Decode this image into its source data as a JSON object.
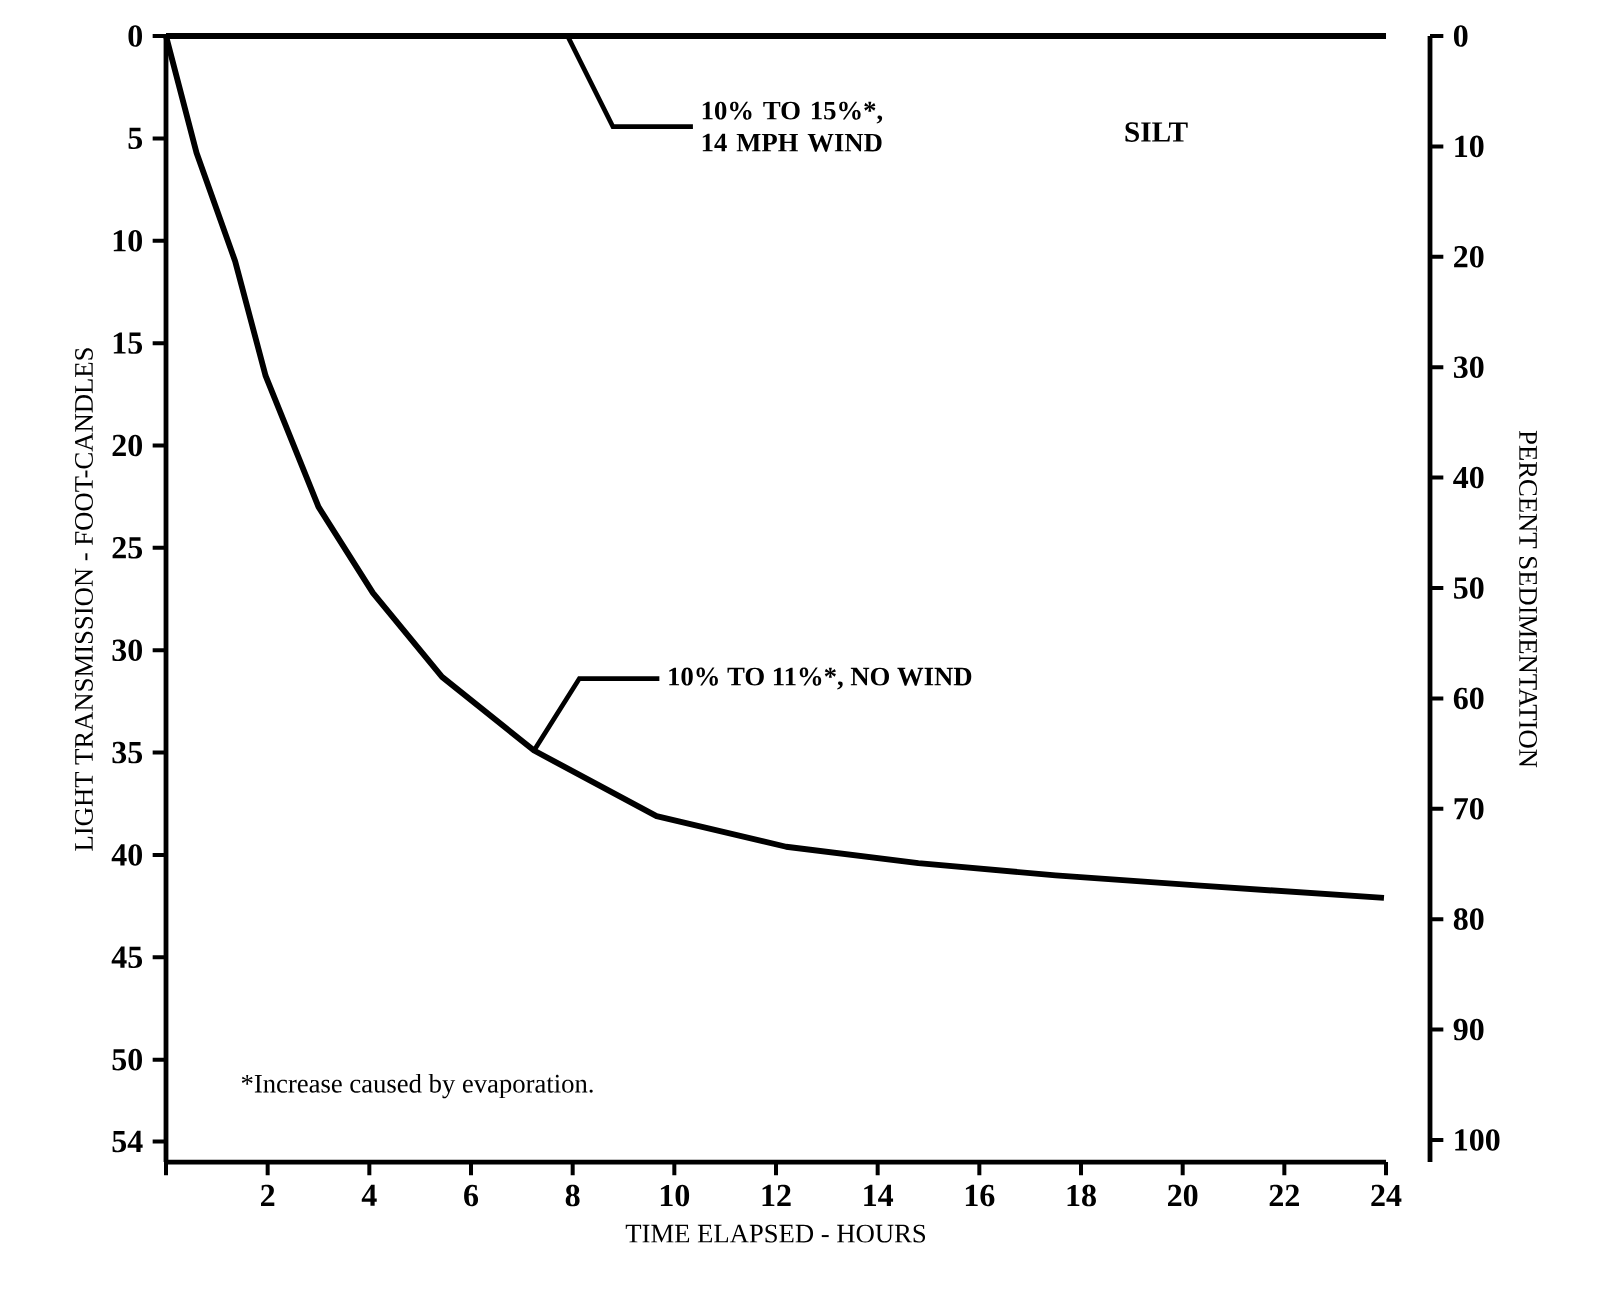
{
  "chart_data": {
    "type": "line",
    "xlabel": "TIME ELAPSED - HOURS",
    "ylabel": "LIGHT TRANSMISSION - FOOT-CANDLES",
    "y2label": "PERCENT SEDIMENTATION",
    "xlim": [
      0,
      24
    ],
    "xticks": [
      {
        "value": 0,
        "label": null
      },
      2,
      4,
      6,
      8,
      10,
      12,
      14,
      16,
      18,
      20,
      22,
      24
    ],
    "ylim": [
      55,
      0
    ],
    "yticks": [
      0,
      5,
      10,
      15,
      20,
      25,
      30,
      35,
      40,
      45,
      50,
      54
    ],
    "y2lim": [
      102,
      0
    ],
    "y2ticks": [
      0,
      10,
      20,
      30,
      40,
      50,
      60,
      70,
      80,
      90,
      100
    ],
    "series": [
      {
        "color": "#000000",
        "x": [
          0,
          24
        ],
        "values": [
          0,
          0
        ]
      },
      {
        "color": "#000000",
        "x": [
          0,
          0.6,
          1.36,
          1.96,
          3.0,
          4.07,
          5.43,
          7.24,
          9.65,
          12.2,
          14.8,
          17.5,
          20.35,
          23.96
        ],
        "values": [
          0,
          5.7,
          11,
          16.6,
          23,
          27.2,
          31.3,
          34.9,
          38.1,
          39.6,
          40.4,
          41.0,
          41.5,
          42.1
        ]
      }
    ],
    "annotations": [
      {
        "text": "10% TO 15%*, 14 MPH WIND",
        "x": 7.9,
        "y": 0
      },
      {
        "text": "10% TO 11%*, NO WIND",
        "x": 7.24,
        "y": 34.9
      },
      "SILT",
      "*Increase caused by evaporation."
    ]
  }
}
